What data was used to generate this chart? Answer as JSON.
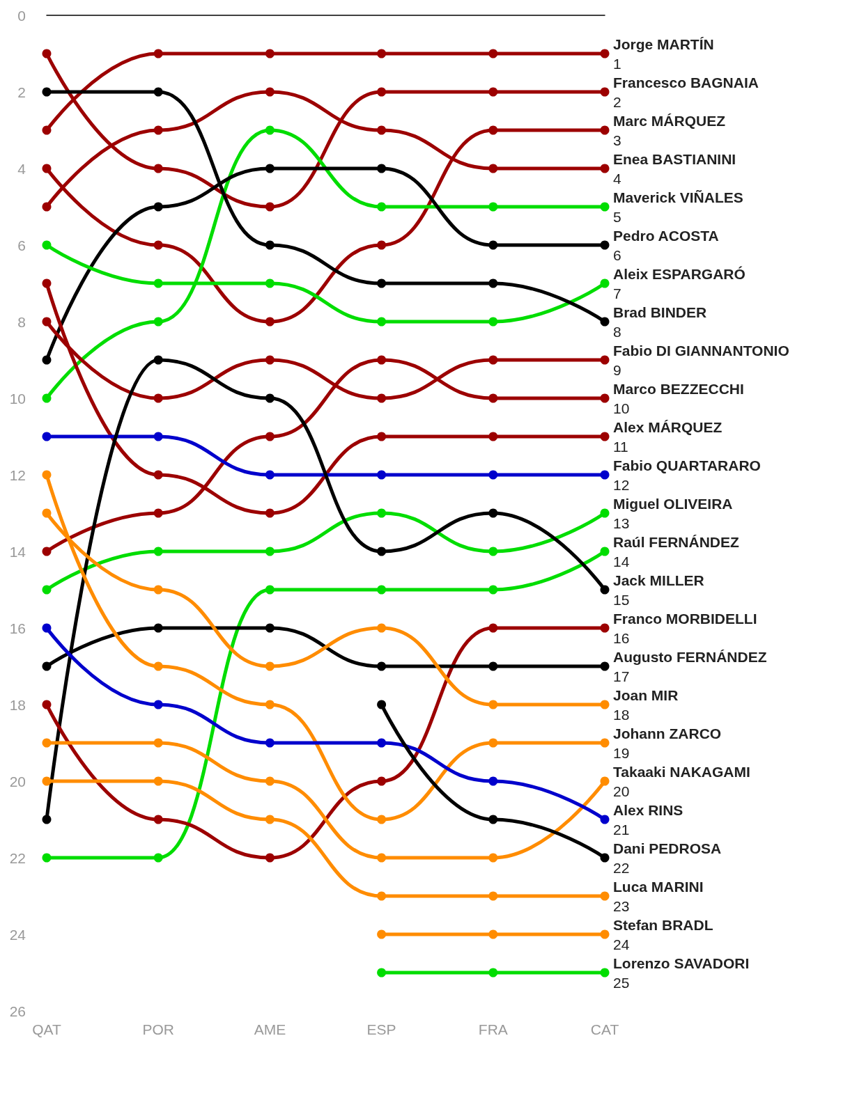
{
  "chart_data": {
    "type": "line",
    "categories": [
      "QAT",
      "POR",
      "AME",
      "ESP",
      "FRA",
      "CAT"
    ],
    "ylim": [
      26,
      0
    ],
    "yticks": [
      0,
      2,
      4,
      6,
      8,
      10,
      12,
      14,
      16,
      18,
      20,
      22,
      24,
      26
    ],
    "grid": false,
    "legend": false,
    "marker": "circle",
    "line_style": "solid",
    "series": [
      {
        "name": "Jorge MARTÍN",
        "color": "#9c0000",
        "values": [
          3,
          1,
          1,
          1,
          1,
          1
        ],
        "value_labels": [
          null,
          null,
          null,
          null,
          null,
          "1"
        ]
      },
      {
        "name": "Francesco BAGNAIA",
        "color": "#9c0000",
        "values": [
          1,
          4,
          5,
          2,
          2,
          2
        ],
        "value_labels": [
          null,
          null,
          null,
          null,
          null,
          "2"
        ]
      },
      {
        "name": "Marc MÁRQUEZ",
        "color": "#9c0000",
        "values": [
          4,
          6,
          8,
          6,
          3,
          3
        ],
        "value_labels": [
          null,
          null,
          null,
          null,
          null,
          "3"
        ]
      },
      {
        "name": "Enea BASTIANINI",
        "color": "#9c0000",
        "values": [
          5,
          3,
          2,
          3,
          4,
          4
        ],
        "value_labels": [
          null,
          null,
          null,
          null,
          null,
          "4"
        ]
      },
      {
        "name": "Maverick VIÑALES",
        "color": "#00dd00",
        "values": [
          10,
          8,
          3,
          5,
          5,
          5
        ],
        "value_labels": [
          null,
          null,
          null,
          null,
          null,
          "5"
        ]
      },
      {
        "name": "Pedro ACOSTA",
        "color": "#000000",
        "values": [
          9,
          5,
          4,
          4,
          6,
          6
        ],
        "value_labels": [
          null,
          null,
          null,
          null,
          null,
          "6"
        ]
      },
      {
        "name": "Aleix ESPARGARÓ",
        "color": "#00dd00",
        "values": [
          6,
          7,
          7,
          8,
          8,
          7
        ],
        "value_labels": [
          null,
          null,
          null,
          null,
          null,
          "7"
        ]
      },
      {
        "name": "Brad BINDER",
        "color": "#000000",
        "values": [
          2,
          2,
          6,
          7,
          7,
          8
        ],
        "value_labels": [
          null,
          null,
          null,
          null,
          null,
          "8"
        ]
      },
      {
        "name": "Fabio DI GIANNANTONIO",
        "color": "#9c0000",
        "values": [
          8,
          10,
          9,
          10,
          9,
          9
        ],
        "value_labels": [
          null,
          null,
          null,
          null,
          null,
          "9"
        ]
      },
      {
        "name": "Marco BEZZECCHI",
        "color": "#9c0000",
        "values": [
          14,
          13,
          11,
          9,
          10,
          10
        ],
        "value_labels": [
          null,
          null,
          null,
          null,
          null,
          "10"
        ]
      },
      {
        "name": "Alex MÁRQUEZ",
        "color": "#9c0000",
        "values": [
          7,
          12,
          13,
          11,
          11,
          11
        ],
        "value_labels": [
          null,
          null,
          null,
          null,
          null,
          "11"
        ]
      },
      {
        "name": "Fabio QUARTARARO",
        "color": "#0000cc",
        "values": [
          11,
          11,
          12,
          12,
          12,
          12
        ],
        "value_labels": [
          null,
          null,
          null,
          null,
          null,
          "12"
        ]
      },
      {
        "name": "Miguel OLIVEIRA",
        "color": "#00dd00",
        "values": [
          15,
          14,
          14,
          13,
          14,
          13
        ],
        "value_labels": [
          null,
          null,
          null,
          null,
          null,
          "13"
        ]
      },
      {
        "name": "Raúl FERNÁNDEZ",
        "color": "#00dd00",
        "values": [
          22,
          22,
          15,
          15,
          15,
          14
        ],
        "value_labels": [
          null,
          null,
          null,
          null,
          null,
          "14"
        ]
      },
      {
        "name": "Jack MILLER",
        "color": "#000000",
        "values": [
          21,
          9,
          10,
          14,
          13,
          15
        ],
        "value_labels": [
          null,
          null,
          null,
          null,
          null,
          "15"
        ]
      },
      {
        "name": "Franco MORBIDELLI",
        "color": "#9c0000",
        "values": [
          18,
          21,
          22,
          20,
          16,
          16
        ],
        "value_labels": [
          null,
          null,
          null,
          null,
          null,
          "16"
        ]
      },
      {
        "name": "Augusto FERNÁNDEZ",
        "color": "#000000",
        "values": [
          17,
          16,
          16,
          17,
          17,
          17
        ],
        "value_labels": [
          null,
          null,
          null,
          null,
          null,
          "17"
        ]
      },
      {
        "name": "Joan MIR",
        "color": "#ff8c00",
        "values": [
          13,
          15,
          17,
          16,
          18,
          18
        ],
        "value_labels": [
          null,
          null,
          null,
          null,
          null,
          "18"
        ]
      },
      {
        "name": "Johann ZARCO",
        "color": "#ff8c00",
        "values": [
          12,
          17,
          18,
          21,
          19,
          19
        ],
        "value_labels": [
          null,
          null,
          null,
          null,
          null,
          "19"
        ]
      },
      {
        "name": "Takaaki NAKAGAMI",
        "color": "#ff8c00",
        "values": [
          19,
          19,
          20,
          22,
          22,
          20
        ],
        "value_labels": [
          null,
          null,
          null,
          null,
          null,
          "20"
        ]
      },
      {
        "name": "Alex RINS",
        "color": "#0000cc",
        "values": [
          16,
          18,
          19,
          19,
          20,
          21
        ],
        "value_labels": [
          null,
          null,
          null,
          null,
          null,
          "21"
        ]
      },
      {
        "name": "Dani PEDROSA",
        "color": "#000000",
        "values": [
          null,
          null,
          null,
          18,
          21,
          22
        ],
        "value_labels": [
          null,
          null,
          null,
          null,
          null,
          "22"
        ]
      },
      {
        "name": "Luca MARINI",
        "color": "#ff8c00",
        "values": [
          20,
          20,
          21,
          23,
          23,
          23
        ],
        "value_labels": [
          null,
          null,
          null,
          null,
          null,
          "23"
        ]
      },
      {
        "name": "Stefan BRADL",
        "color": "#ff8c00",
        "values": [
          null,
          null,
          null,
          24,
          24,
          24
        ],
        "value_labels": [
          null,
          null,
          null,
          null,
          null,
          "24"
        ]
      },
      {
        "name": "Lorenzo SAVADORI",
        "color": "#00dd00",
        "values": [
          null,
          null,
          null,
          25,
          25,
          25
        ],
        "value_labels": [
          null,
          null,
          null,
          null,
          null,
          "25"
        ]
      }
    ]
  }
}
